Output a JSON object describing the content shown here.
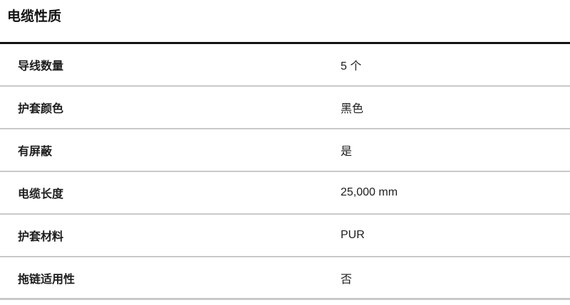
{
  "section": {
    "title": "电缆性质"
  },
  "table": {
    "rows": [
      {
        "label": "导线数量",
        "value": "5 个"
      },
      {
        "label": "护套颜色",
        "value": "黑色"
      },
      {
        "label": "有屏蔽",
        "value": "是"
      },
      {
        "label": "电缆长度",
        "value": "25,000 mm"
      },
      {
        "label": "护套材料",
        "value": "PUR"
      },
      {
        "label": "拖链适用性",
        "value": "否"
      }
    ]
  },
  "colors": {
    "text": "#1d1d1d",
    "title_rule": "#141414",
    "row_separator": "#c9c9c9"
  }
}
